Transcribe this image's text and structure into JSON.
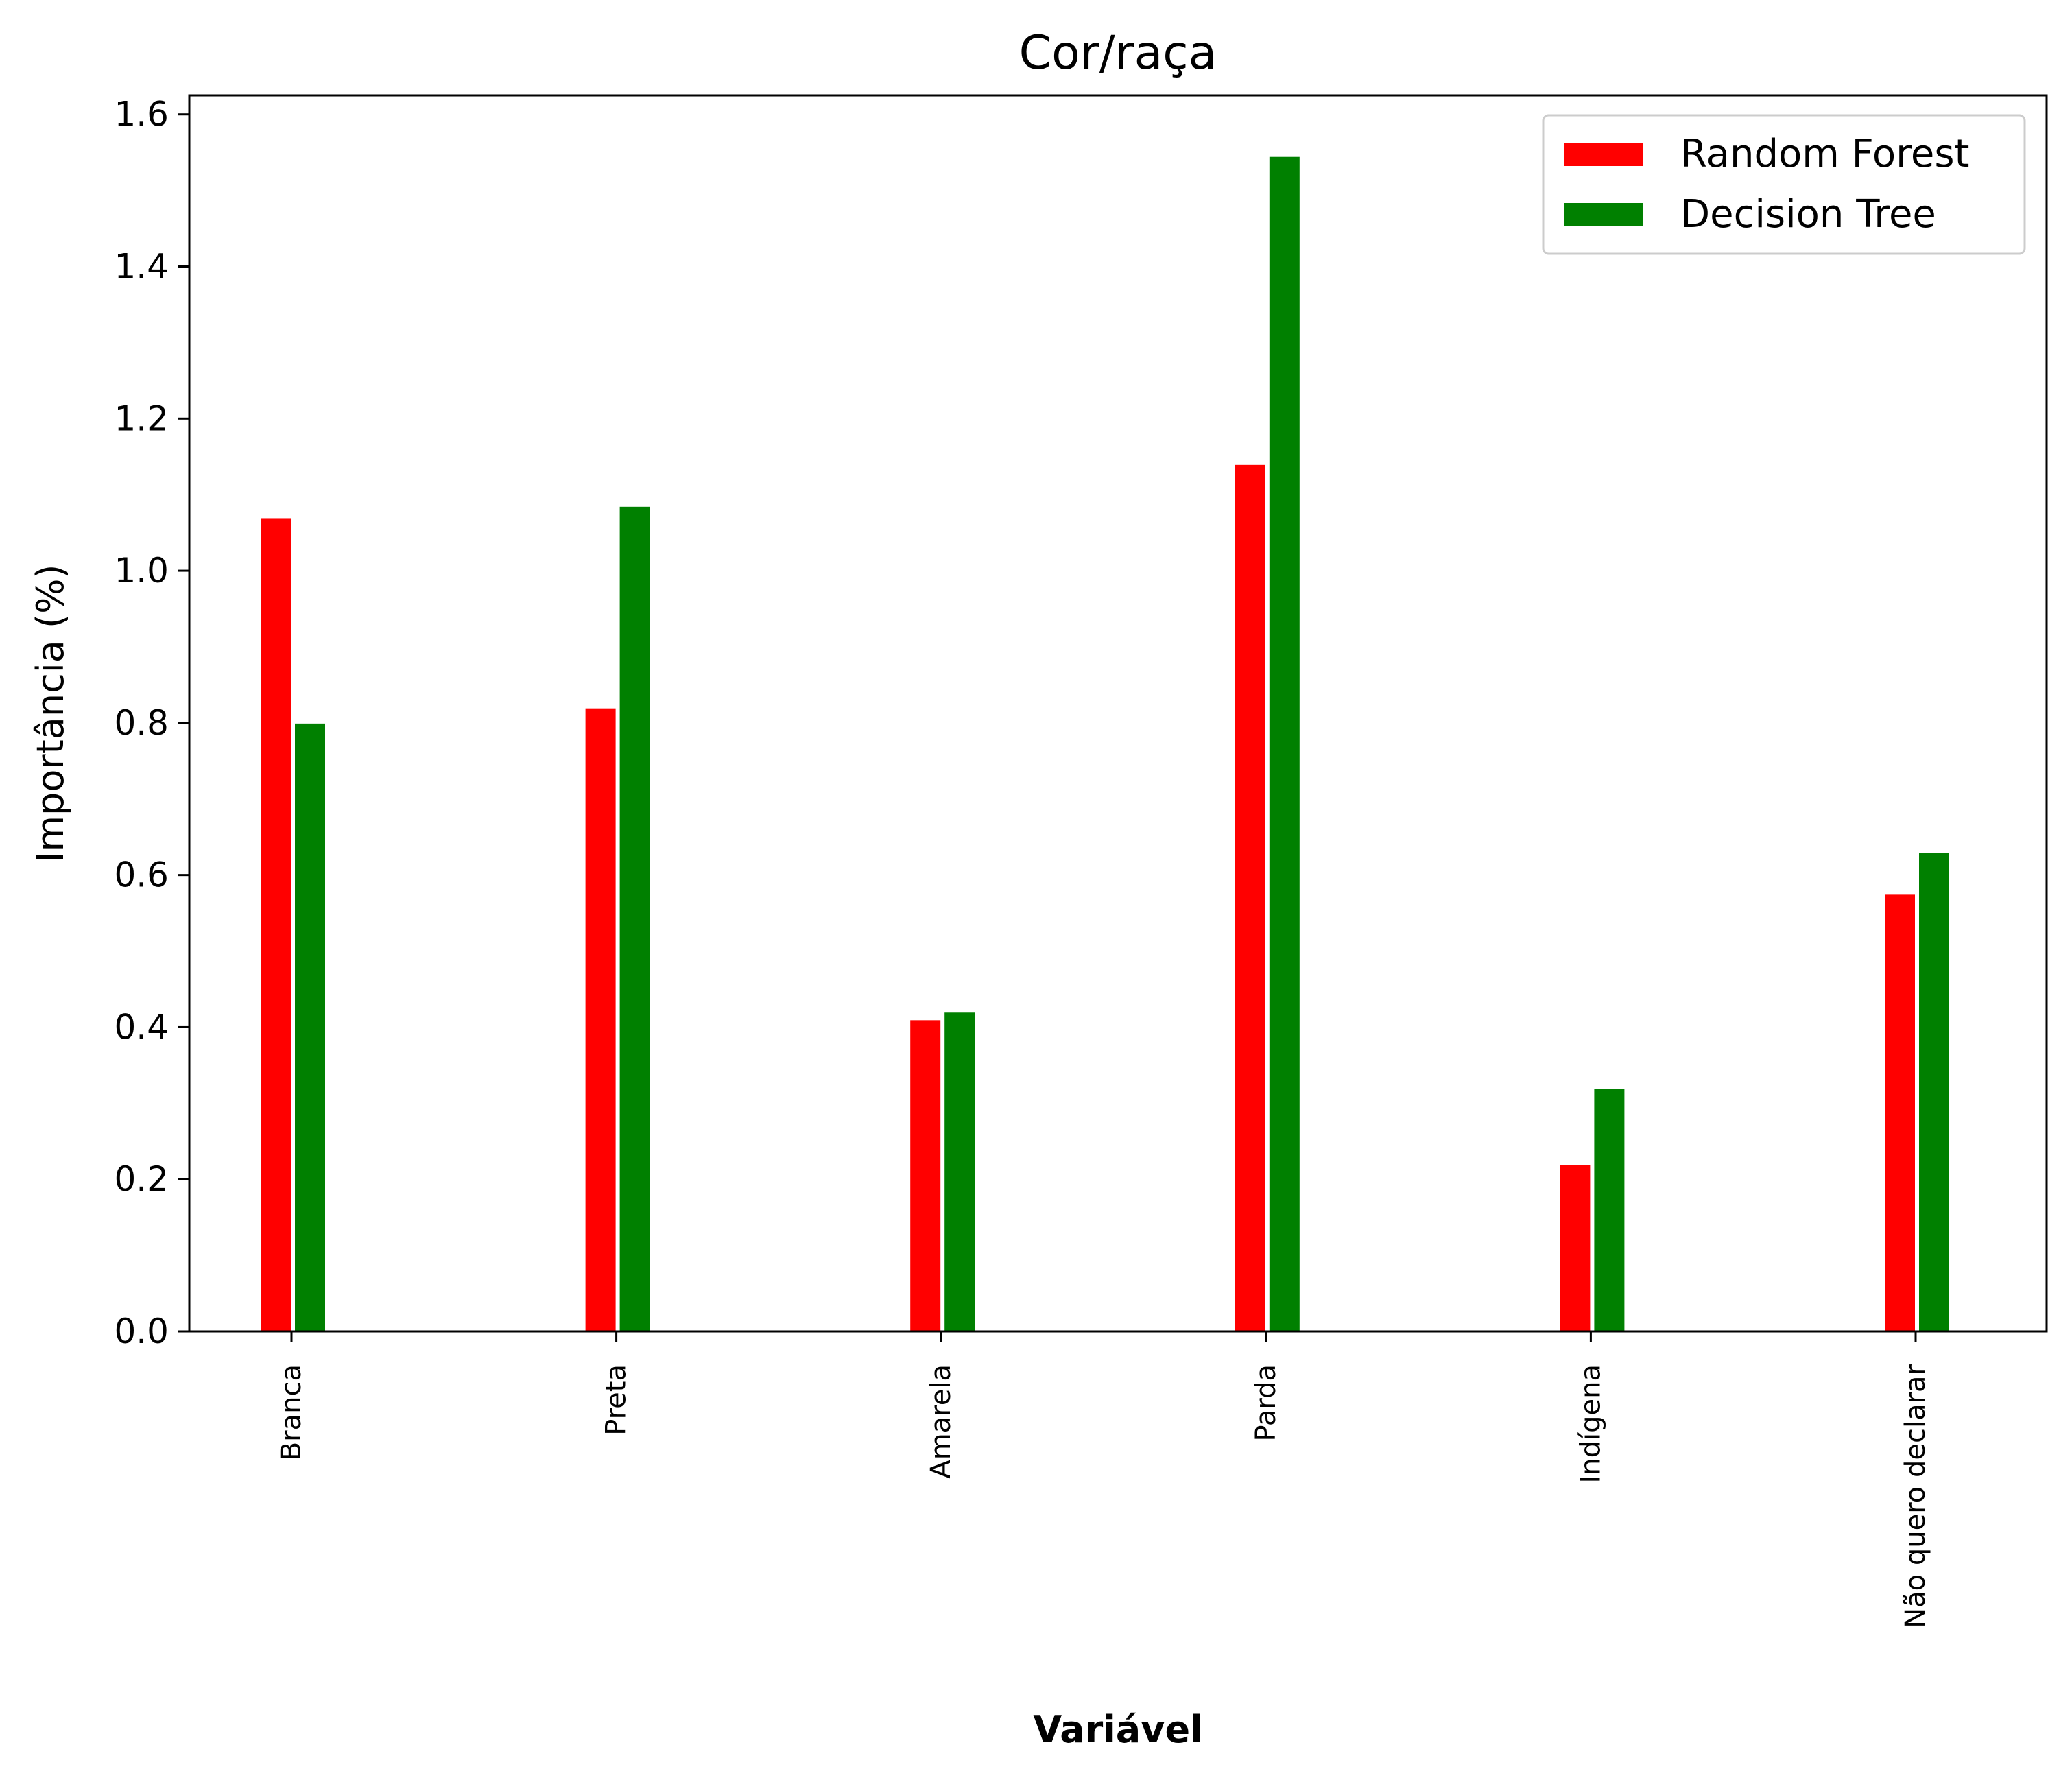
{
  "chart_data": {
    "type": "bar",
    "title": "Cor/raça",
    "xlabel": "Variável",
    "ylabel": "Importância (%)",
    "categories": [
      "Branca",
      "Preta",
      "Amarela",
      "Parda",
      "Indígena",
      "Não quero declarar"
    ],
    "series": [
      {
        "name": "Random Forest",
        "color": "#ff0000",
        "values": [
          1.07,
          0.82,
          0.41,
          1.14,
          0.22,
          0.575
        ]
      },
      {
        "name": "Decision Tree",
        "color": "#008000",
        "values": [
          0.8,
          1.085,
          0.42,
          1.545,
          0.32,
          0.63
        ]
      }
    ],
    "ylim": [
      0,
      1.625
    ],
    "yticks": [
      "0.0",
      "0.2",
      "0.4",
      "0.6",
      "0.8",
      "1.0",
      "1.2",
      "1.4",
      "1.6"
    ],
    "grid": false,
    "legend_position": "top-right"
  }
}
